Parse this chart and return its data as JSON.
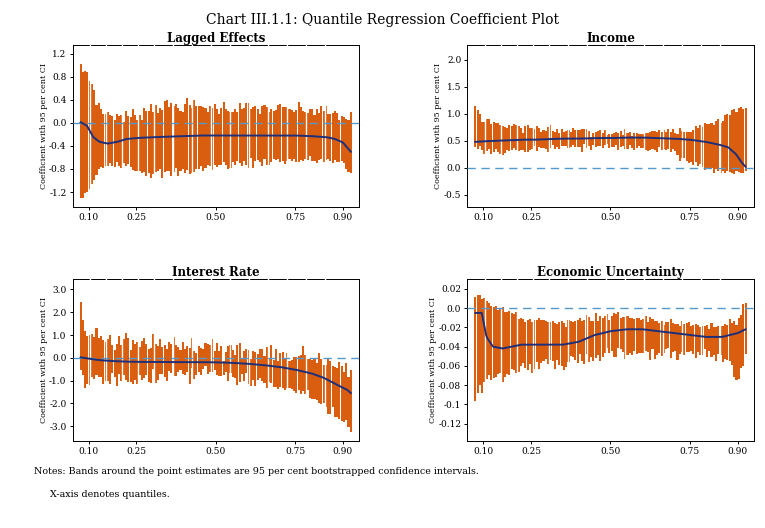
{
  "title": "Chart III.1.1: Quantile Regression Coefficient Plot",
  "subplots": [
    {
      "title": "Lagged Effects",
      "ylim": [
        -1.45,
        1.35
      ],
      "yticks": [
        -1.2,
        -0.8,
        -0.4,
        0.0,
        0.4,
        0.8,
        1.2
      ],
      "coef_q": [
        0.075,
        0.095,
        0.115,
        0.135,
        0.16,
        0.19,
        0.22,
        0.26,
        0.3,
        0.35,
        0.4,
        0.45,
        0.5,
        0.55,
        0.6,
        0.65,
        0.7,
        0.75,
        0.8,
        0.85,
        0.875,
        0.9,
        0.925
      ],
      "coef_v": [
        0.01,
        -0.05,
        -0.25,
        -0.33,
        -0.36,
        -0.33,
        -0.28,
        -0.26,
        -0.25,
        -0.24,
        -0.23,
        -0.22,
        -0.22,
        -0.22,
        -0.22,
        -0.22,
        -0.22,
        -0.22,
        -0.23,
        -0.25,
        -0.28,
        -0.34,
        -0.5
      ],
      "up_q": [
        0.075,
        0.095,
        0.115,
        0.135,
        0.16,
        0.19,
        0.22,
        0.26,
        0.3,
        0.35,
        0.4,
        0.45,
        0.5,
        0.55,
        0.6,
        0.65,
        0.7,
        0.75,
        0.8,
        0.85,
        0.875,
        0.9,
        0.925
      ],
      "up_v": [
        0.92,
        0.88,
        0.62,
        0.22,
        0.15,
        0.12,
        0.1,
        0.15,
        0.28,
        0.3,
        0.3,
        0.28,
        0.26,
        0.25,
        0.25,
        0.25,
        0.24,
        0.23,
        0.22,
        0.19,
        0.14,
        0.1,
        0.08
      ],
      "lo_q": [
        0.075,
        0.095,
        0.115,
        0.135,
        0.16,
        0.19,
        0.22,
        0.26,
        0.3,
        0.35,
        0.4,
        0.45,
        0.5,
        0.55,
        0.6,
        0.65,
        0.7,
        0.75,
        0.8,
        0.85,
        0.875,
        0.9,
        0.925
      ],
      "lo_v": [
        -1.28,
        -1.22,
        -1.05,
        -0.8,
        -0.72,
        -0.68,
        -0.72,
        -0.82,
        -0.88,
        -0.88,
        -0.85,
        -0.8,
        -0.75,
        -0.72,
        -0.7,
        -0.68,
        -0.66,
        -0.65,
        -0.65,
        -0.65,
        -0.68,
        -0.72,
        -0.88
      ],
      "sep_lines": [
        0.105,
        0.155,
        0.205,
        0.255,
        0.305,
        0.365,
        0.425,
        0.485,
        0.545,
        0.605,
        0.665,
        0.725,
        0.785,
        0.845
      ]
    },
    {
      "title": "Income",
      "ylim": [
        -0.72,
        2.28
      ],
      "yticks": [
        -0.5,
        0.0,
        0.5,
        1.0,
        1.5,
        2.0
      ],
      "coef_q": [
        0.075,
        0.1,
        0.14,
        0.18,
        0.22,
        0.26,
        0.3,
        0.35,
        0.4,
        0.45,
        0.5,
        0.55,
        0.6,
        0.65,
        0.7,
        0.75,
        0.8,
        0.84,
        0.87,
        0.895,
        0.915,
        0.925
      ],
      "coef_v": [
        0.48,
        0.49,
        0.5,
        0.51,
        0.52,
        0.52,
        0.53,
        0.54,
        0.54,
        0.55,
        0.55,
        0.56,
        0.56,
        0.55,
        0.54,
        0.52,
        0.48,
        0.43,
        0.38,
        0.25,
        0.08,
        0.02
      ],
      "up_q": [
        0.075,
        0.1,
        0.14,
        0.18,
        0.22,
        0.26,
        0.3,
        0.35,
        0.4,
        0.45,
        0.5,
        0.55,
        0.6,
        0.65,
        0.7,
        0.75,
        0.8,
        0.84,
        0.87,
        0.895,
        0.915,
        0.925
      ],
      "up_v": [
        1.12,
        0.9,
        0.82,
        0.78,
        0.75,
        0.73,
        0.72,
        0.7,
        0.68,
        0.66,
        0.65,
        0.64,
        0.65,
        0.66,
        0.68,
        0.72,
        0.8,
        0.88,
        0.98,
        1.08,
        1.1,
        1.1
      ],
      "lo_q": [
        0.075,
        0.1,
        0.14,
        0.18,
        0.22,
        0.26,
        0.3,
        0.35,
        0.4,
        0.45,
        0.5,
        0.55,
        0.6,
        0.65,
        0.7,
        0.75,
        0.8,
        0.84,
        0.87,
        0.895,
        0.915,
        0.925
      ],
      "lo_v": [
        0.38,
        0.32,
        0.28,
        0.3,
        0.32,
        0.34,
        0.35,
        0.37,
        0.38,
        0.38,
        0.38,
        0.38,
        0.37,
        0.34,
        0.28,
        0.1,
        0.0,
        -0.06,
        -0.08,
        -0.09,
        -0.09,
        -0.08
      ],
      "sep_lines": [
        0.105,
        0.155,
        0.205,
        0.255,
        0.305,
        0.365,
        0.425,
        0.485,
        0.545,
        0.605,
        0.665,
        0.725,
        0.785,
        0.845
      ]
    },
    {
      "title": "Interest Rate",
      "ylim": [
        -3.65,
        3.45
      ],
      "yticks": [
        -3.0,
        -2.0,
        -1.0,
        0.0,
        1.0,
        2.0,
        3.0
      ],
      "coef_q": [
        0.075,
        0.095,
        0.115,
        0.14,
        0.17,
        0.2,
        0.25,
        0.3,
        0.35,
        0.4,
        0.45,
        0.5,
        0.55,
        0.6,
        0.65,
        0.7,
        0.75,
        0.8,
        0.84,
        0.87,
        0.895,
        0.915,
        0.925
      ],
      "coef_v": [
        0.02,
        -0.02,
        -0.07,
        -0.11,
        -0.14,
        -0.16,
        -0.18,
        -0.18,
        -0.19,
        -0.19,
        -0.19,
        -0.2,
        -0.22,
        -0.26,
        -0.32,
        -0.4,
        -0.52,
        -0.68,
        -0.88,
        -1.1,
        -1.28,
        -1.42,
        -1.55
      ],
      "up_q": [
        0.075,
        0.095,
        0.115,
        0.14,
        0.17,
        0.2,
        0.25,
        0.3,
        0.35,
        0.4,
        0.45,
        0.5,
        0.55,
        0.6,
        0.65,
        0.7,
        0.75,
        0.8,
        0.84,
        0.87,
        0.895,
        0.915,
        0.925
      ],
      "up_v": [
        2.52,
        1.08,
        0.95,
        0.85,
        0.8,
        0.78,
        0.72,
        0.68,
        0.62,
        0.58,
        0.52,
        0.45,
        0.38,
        0.28,
        0.18,
        0.08,
        0.0,
        -0.08,
        -0.15,
        -0.22,
        -0.28,
        -0.32,
        -0.38
      ],
      "lo_q": [
        0.075,
        0.095,
        0.115,
        0.14,
        0.17,
        0.2,
        0.25,
        0.3,
        0.35,
        0.4,
        0.45,
        0.5,
        0.55,
        0.6,
        0.65,
        0.7,
        0.75,
        0.8,
        0.84,
        0.87,
        0.895,
        0.915,
        0.925
      ],
      "lo_v": [
        -0.78,
        -1.02,
        -1.0,
        -0.95,
        -0.9,
        -0.88,
        -0.85,
        -0.8,
        -0.78,
        -0.75,
        -0.72,
        -0.75,
        -0.82,
        -0.95,
        -1.1,
        -1.28,
        -1.5,
        -1.8,
        -2.1,
        -2.45,
        -2.72,
        -3.0,
        -3.18
      ],
      "sep_lines": [
        0.105,
        0.155,
        0.205,
        0.255,
        0.305,
        0.365,
        0.425,
        0.485,
        0.545,
        0.605,
        0.665,
        0.725,
        0.785,
        0.845
      ]
    },
    {
      "title": "Economic Uncertainty",
      "ylim": [
        -0.138,
        0.03
      ],
      "yticks": [
        -0.12,
        -0.1,
        -0.08,
        -0.06,
        -0.04,
        -0.02,
        0.0,
        0.02
      ],
      "coef_q": [
        0.075,
        0.095,
        0.11,
        0.13,
        0.16,
        0.19,
        0.22,
        0.26,
        0.3,
        0.35,
        0.4,
        0.45,
        0.5,
        0.55,
        0.6,
        0.65,
        0.7,
        0.75,
        0.8,
        0.85,
        0.875,
        0.9,
        0.925
      ],
      "coef_v": [
        -0.005,
        -0.005,
        -0.03,
        -0.04,
        -0.042,
        -0.04,
        -0.038,
        -0.038,
        -0.038,
        -0.038,
        -0.035,
        -0.028,
        -0.024,
        -0.022,
        -0.022,
        -0.024,
        -0.026,
        -0.028,
        -0.03,
        -0.03,
        -0.028,
        -0.026,
        -0.022
      ],
      "up_q": [
        0.075,
        0.095,
        0.11,
        0.13,
        0.16,
        0.19,
        0.22,
        0.26,
        0.3,
        0.35,
        0.4,
        0.45,
        0.5,
        0.55,
        0.6,
        0.65,
        0.7,
        0.75,
        0.8,
        0.85,
        0.875,
        0.9,
        0.925
      ],
      "up_v": [
        0.01,
        0.012,
        0.008,
        0.002,
        -0.002,
        -0.005,
        -0.01,
        -0.012,
        -0.013,
        -0.014,
        -0.013,
        -0.01,
        -0.008,
        -0.009,
        -0.011,
        -0.013,
        -0.015,
        -0.017,
        -0.018,
        -0.018,
        -0.016,
        -0.013,
        0.005
      ],
      "lo_q": [
        0.075,
        0.095,
        0.11,
        0.13,
        0.16,
        0.19,
        0.22,
        0.26,
        0.3,
        0.35,
        0.4,
        0.45,
        0.5,
        0.55,
        0.6,
        0.65,
        0.7,
        0.75,
        0.8,
        0.85,
        0.875,
        0.9,
        0.925
      ],
      "lo_v": [
        -0.1,
        -0.082,
        -0.075,
        -0.072,
        -0.07,
        -0.068,
        -0.063,
        -0.06,
        -0.06,
        -0.058,
        -0.055,
        -0.052,
        -0.05,
        -0.048,
        -0.046,
        -0.046,
        -0.046,
        -0.046,
        -0.048,
        -0.05,
        -0.052,
        -0.08,
        -0.05
      ],
      "sep_lines": [
        0.105,
        0.155,
        0.205,
        0.255,
        0.305,
        0.365,
        0.425,
        0.485,
        0.545,
        0.605,
        0.665,
        0.725,
        0.785,
        0.845
      ]
    }
  ],
  "orange_color": "#D95E10",
  "blue_color": "#1C2F7A",
  "dashed_color": "#5599CC",
  "notes_line1": "Notes: Bands around the point estimates are 95 per cent bootstrapped confidence intervals.",
  "notes_line2": "X-axis denotes quantiles.",
  "xticks": [
    0.1,
    0.25,
    0.5,
    0.75,
    0.9
  ],
  "xlim": [
    0.05,
    0.95
  ],
  "n_bars": 120
}
